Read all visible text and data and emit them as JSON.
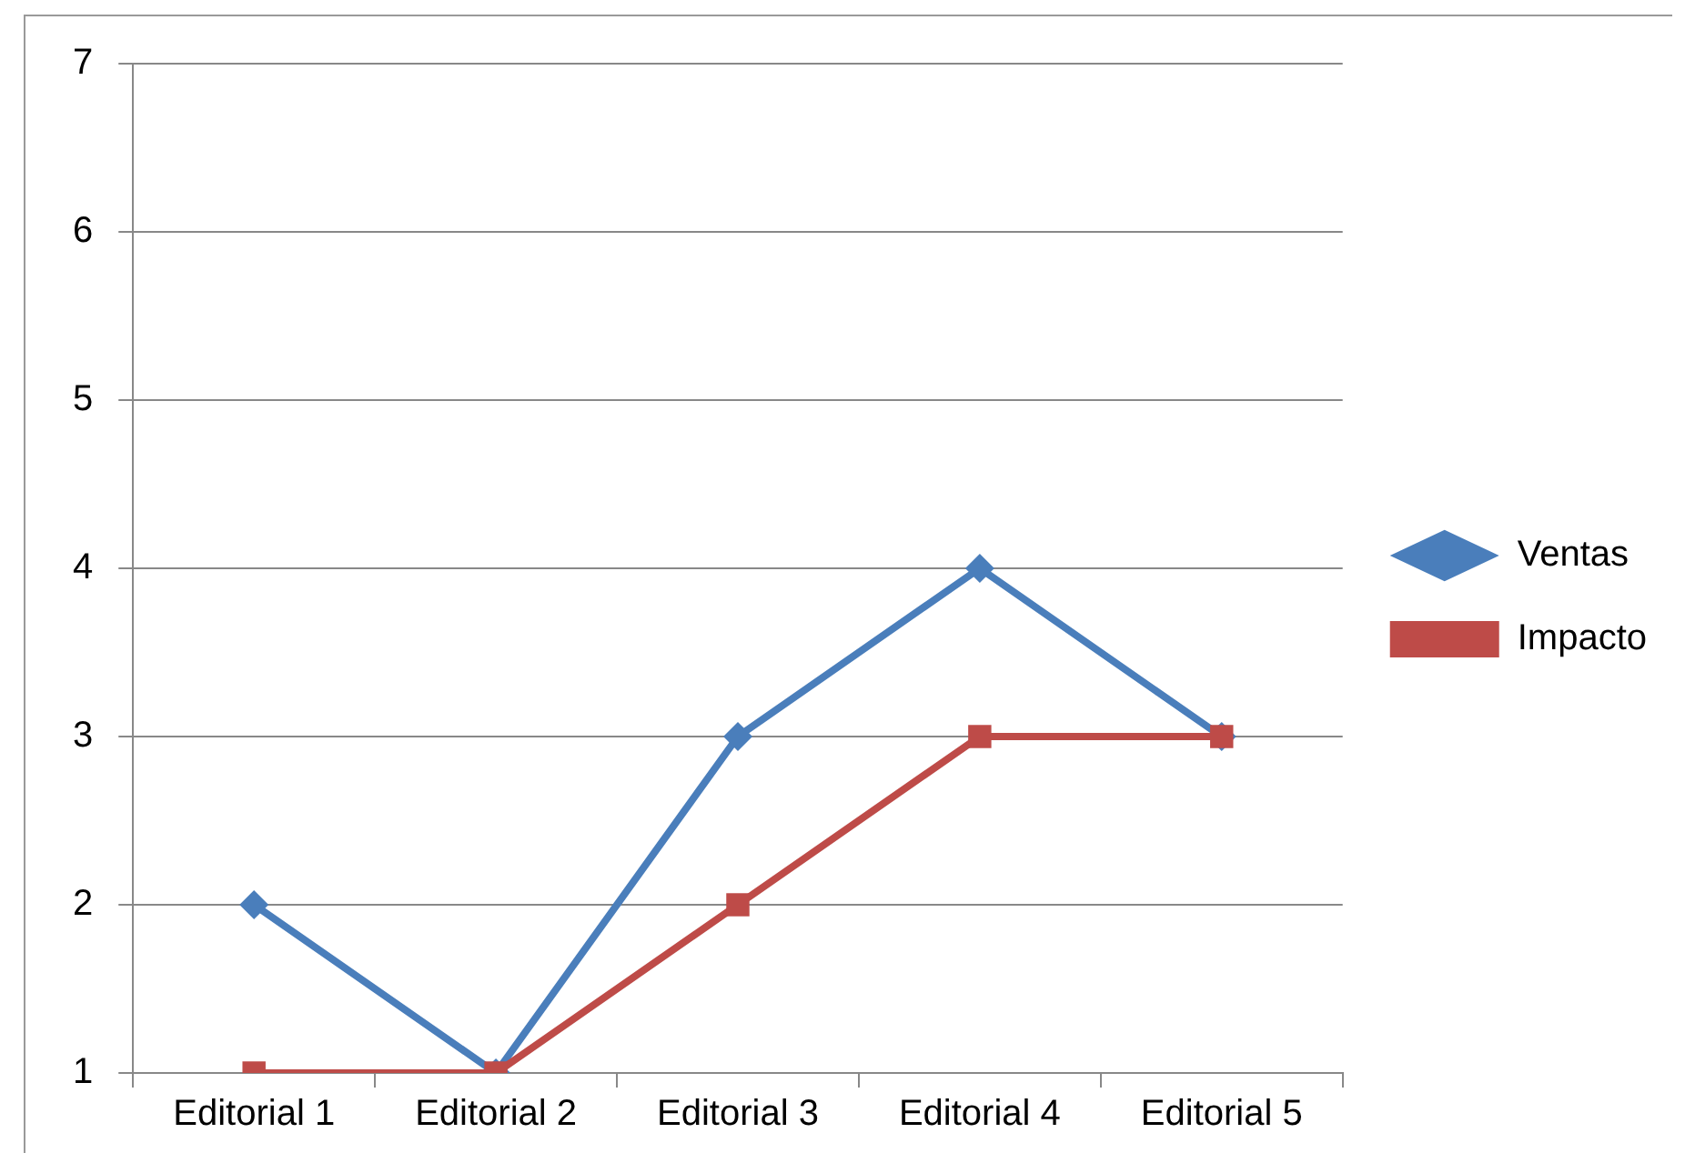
{
  "chart_data": {
    "type": "line",
    "categories": [
      "Editorial 1",
      "Editorial 2",
      "Editorial 3",
      "Editorial 4",
      "Editorial 5"
    ],
    "series": [
      {
        "name": "Ventas",
        "color": "#4a7ebb",
        "values": [
          2,
          1,
          3,
          4,
          3
        ],
        "marker": "diamond"
      },
      {
        "name": "Impacto",
        "color": "#be4b48",
        "values": [
          1,
          1,
          2,
          3,
          3
        ],
        "marker": "square"
      }
    ],
    "ylim": [
      1,
      7
    ],
    "yticks": [
      1,
      2,
      3,
      4,
      5,
      6,
      7
    ],
    "grid": "y",
    "legend": "right",
    "line_style": "solid"
  }
}
